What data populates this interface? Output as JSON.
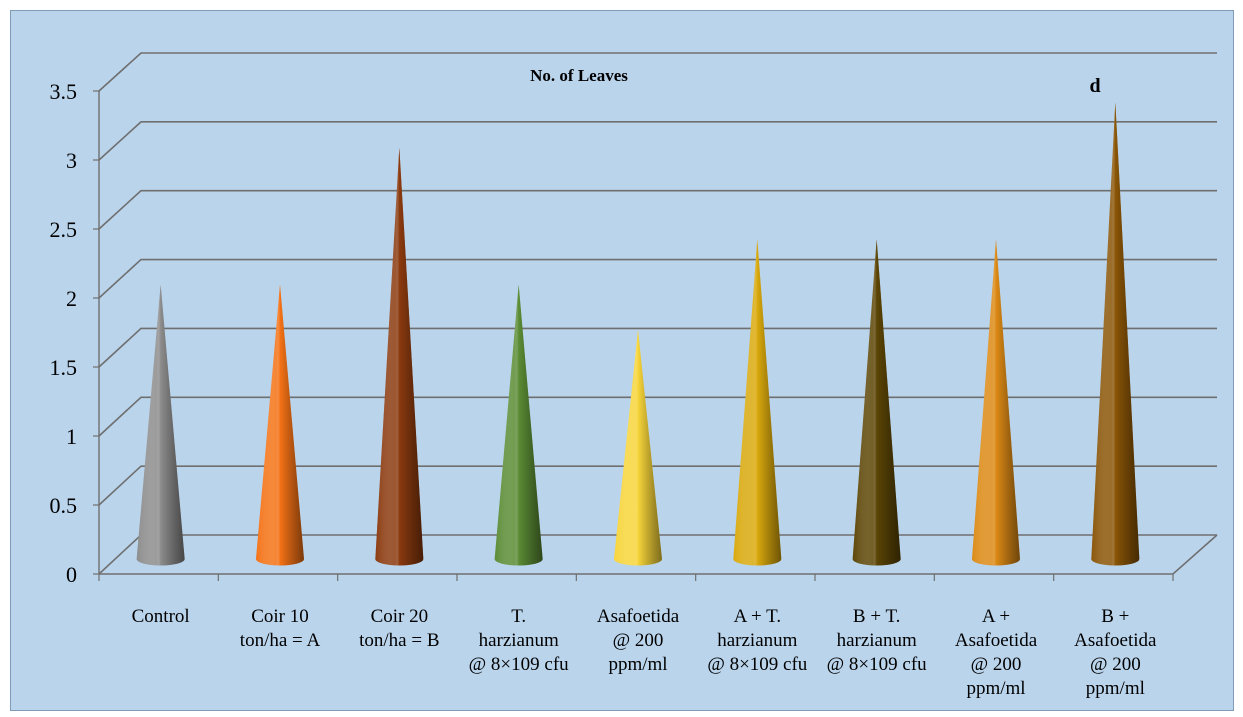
{
  "chart_data": {
    "type": "bar",
    "subtype": "3d-cone",
    "title": "No. of Leaves",
    "xlabel": "",
    "ylabel": "",
    "ylim": [
      0,
      3.5
    ],
    "yticks": [
      "0",
      "0.5",
      "1",
      "1.5",
      "2",
      "2.5",
      "3",
      "3.5"
    ],
    "grid": true,
    "categories": [
      [
        "Control"
      ],
      [
        "Coir 10",
        "ton/ha = A"
      ],
      [
        "Coir 20",
        "ton/ha = B"
      ],
      [
        "T.",
        "harzianum",
        "@ 8×109 cfu"
      ],
      [
        "Asafoetida",
        "@ 200",
        "ppm/ml"
      ],
      [
        "A + T.",
        "harzianum",
        "@ 8×109 cfu"
      ],
      [
        "B + T.",
        "harzianum",
        "@ 8×109 cfu"
      ],
      [
        "A +",
        "Asafoetida",
        "@ 200",
        "ppm/ml"
      ],
      [
        "B +",
        "Asafoetida",
        "@ 200",
        "ppm/ml"
      ]
    ],
    "values": [
      2.0,
      2.0,
      3.0,
      2.0,
      1.67,
      2.33,
      2.33,
      2.33,
      3.33
    ],
    "colors": [
      "#8c8c8c",
      "#f47216",
      "#8b3a0f",
      "#5b8c35",
      "#f7d53a",
      "#d9a90d",
      "#5c4505",
      "#dc8a15",
      "#8a5507"
    ],
    "annotation": "d"
  }
}
